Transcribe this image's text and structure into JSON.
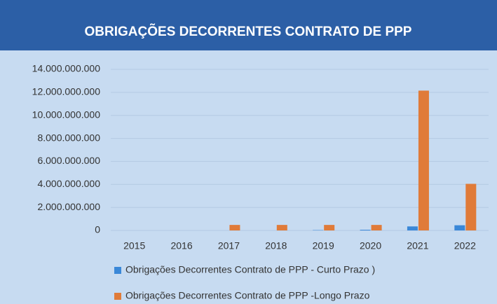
{
  "chart_data": {
    "type": "bar",
    "title": "OBRIGAÇÕES DECORRENTES CONTRATO DE PPP",
    "categories": [
      "2015",
      "2016",
      "2017",
      "2018",
      "2019",
      "2020",
      "2021",
      "2022"
    ],
    "series": [
      {
        "name": "Obrigações Decorrentes Contrato de PPP - Curto Prazo )",
        "color": "#3a88d8",
        "values": [
          0,
          0,
          0,
          0,
          30000000,
          60000000,
          350000000,
          450000000
        ]
      },
      {
        "name": "Obrigações Decorrentes Contrato de PPP -Longo Prazo",
        "color": "#e07b39",
        "values": [
          0,
          0,
          480000000,
          480000000,
          480000000,
          480000000,
          12150000000,
          4050000000
        ]
      }
    ],
    "ylim": [
      0,
      14000000000
    ],
    "yticks": [
      0,
      {
        "value": 2000000000,
        "label": "2.000.000.000"
      },
      {
        "value": 4000000000,
        "label": "4.000.000.000"
      },
      {
        "value": 6000000000,
        "label": "6.000.000.000"
      },
      {
        "value": 8000000000,
        "label": "8.000.000.000"
      },
      {
        "value": 10000000000,
        "label": "10.000.000.000"
      },
      {
        "value": 12000000000,
        "label": "12.000.000.000"
      },
      {
        "value": 14000000000,
        "label": "14.000.000.000"
      }
    ],
    "grid": true,
    "legend": "bottom"
  }
}
